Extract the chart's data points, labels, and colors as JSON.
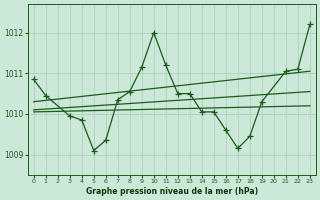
{
  "bg_color": "#cce8d8",
  "grid_color": "#aaccbb",
  "line_color": "#1a5c1a",
  "title": "Graphe pression niveau de la mer (hPa)",
  "xlim": [
    -0.5,
    23.5
  ],
  "ylim": [
    1008.5,
    1012.7
  ],
  "yticks": [
    1009,
    1010,
    1011,
    1012
  ],
  "xticks": [
    0,
    1,
    2,
    3,
    4,
    5,
    6,
    7,
    8,
    9,
    10,
    11,
    12,
    13,
    14,
    15,
    16,
    17,
    18,
    19,
    20,
    21,
    22,
    23
  ],
  "line1_x": [
    0,
    1,
    3,
    4,
    5,
    6,
    7,
    8,
    9,
    10,
    11,
    12,
    13,
    14,
    15,
    16,
    17,
    18,
    19,
    21,
    22,
    23
  ],
  "line1_y": [
    1010.85,
    1010.45,
    1009.95,
    1009.85,
    1009.1,
    1009.35,
    1010.35,
    1010.55,
    1011.15,
    1012.0,
    1011.2,
    1010.5,
    1010.5,
    1010.05,
    1010.05,
    1009.6,
    1009.15,
    1009.45,
    1010.3,
    1011.05,
    1011.1,
    1012.2
  ],
  "line2_x": [
    0,
    23
  ],
  "line2_y": [
    1010.05,
    1010.2
  ],
  "line3_x": [
    0,
    23
  ],
  "line3_y": [
    1010.1,
    1010.55
  ],
  "line4_x": [
    0,
    23
  ],
  "line4_y": [
    1010.3,
    1011.05
  ]
}
